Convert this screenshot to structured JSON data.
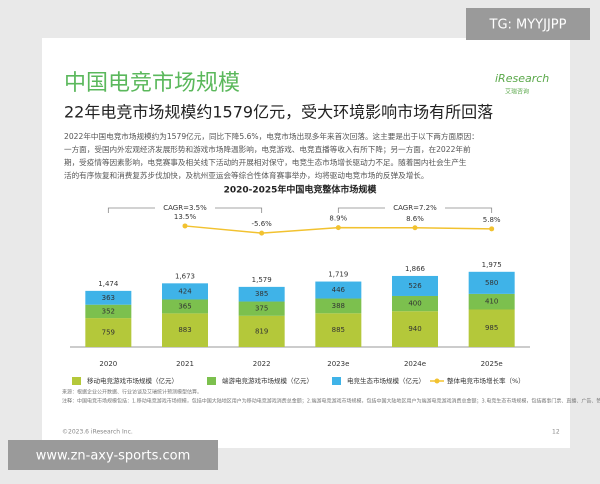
{
  "watermark_top": "TG: MYYJJPP",
  "watermark_bottom": "www.zn-axy-sports.com",
  "logo": {
    "name": "iResearch",
    "sub": "艾瑞咨询"
  },
  "title": "中国电竞市场规模",
  "subtitle": "22年电竞市场规模约1579亿元，受大环境影响市场有所回落",
  "paragraph": [
    "2022年中国电竞市场规模约为1579亿元，同比下降5.6%，电竞市场出现多年来首次回落。这主要是出于以下两方面原因：",
    "一方面，受国内外宏观经济发展形势和游戏市场降温影响，电竞游戏、电竞直播等收入有所下降；另一方面，在2022年前",
    "期，受疫情等因素影响，电竞赛事及相关线下活动的开展相对保守，电竞生态市场增长驱动力不足。随着国内社会生产生",
    "活的有序恢复和消费复苏步伐加快，及杭州亚运会等综合性体育赛事举办，均将驱动电竞市场的反弹及增长。"
  ],
  "chart_data": {
    "type": "bar",
    "stacked": true,
    "title": "2020-2025年中国电竞整体市场规模",
    "categories": [
      "2020",
      "2021",
      "2022",
      "2023e",
      "2024e",
      "2025e"
    ],
    "series": [
      {
        "name": "移动电竞游戏市场规模（亿元）",
        "color": "#b4c83a",
        "values": [
          759,
          883,
          819,
          885,
          940,
          985
        ]
      },
      {
        "name": "端游电竞游戏市场规模（亿元）",
        "color": "#7cc04e",
        "values": [
          352,
          365,
          375,
          388,
          400,
          410
        ]
      },
      {
        "name": "电竞生态市场规模（亿元）",
        "color": "#3fb3e8",
        "values": [
          363,
          424,
          385,
          446,
          526,
          580
        ]
      },
      {
        "name": "整体电竞市场增长率（%）",
        "type": "line",
        "axis": "y2",
        "color": "#f2c230",
        "values": [
          null,
          13.5,
          -5.6,
          8.9,
          8.6,
          5.8
        ],
        "value_labels": [
          null,
          "13.5%",
          "-5.6%",
          "8.9%",
          "8.6%",
          "5.8%"
        ]
      }
    ],
    "totals": [
      1474,
      1673,
      1579,
      1719,
      1866,
      1975
    ],
    "totals_labels": [
      "1,474",
      "1,673",
      "1,579",
      "1,719",
      "1,866",
      "1,975"
    ],
    "annotations": [
      "CAGR=3.5%",
      "CAGR=7.2%"
    ],
    "ylim": [
      0,
      2600
    ],
    "y2lim": [
      -40,
      40
    ]
  },
  "notes": [
    "来源：根据企业公开数据、行业访谈及艾瑞统计预测模型估算。",
    "注释：中国电竞市场规模包括：1.移动电竞游戏市场规模，包括中国大陆地区用户为移动电竞游戏消费总金额；2.端游电竞游戏市场规模，包括中国大陆地区用户为端游电竞游戏消费总金额；3.电竞生态市场规模，包括赛事门票、直播、广告、赞助等相关收入。"
  ],
  "footer": {
    "copyright": "©2023.6 iResearch Inc.",
    "page": "12"
  }
}
